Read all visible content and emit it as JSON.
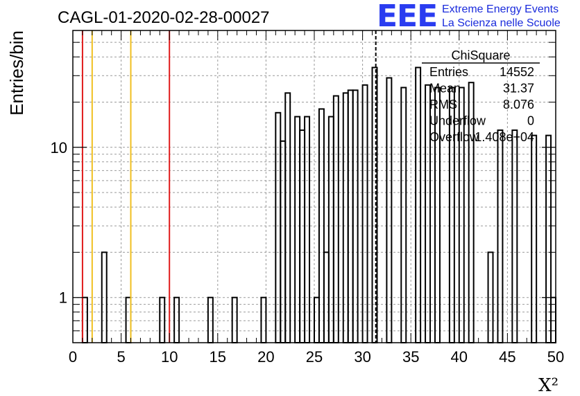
{
  "title": "CAGL-01-2020-02-28-00027",
  "logo": {
    "mark": "EEE",
    "line1": "Extreme Energy Events",
    "line2": "La Scienza nelle Scuole",
    "color": "#1a2bdc"
  },
  "colors": {
    "histogram": "#000000",
    "red_lines": "#e01a1a",
    "yellow_lines": "#f0c020",
    "mean_line": "#000000",
    "grid": "#999999"
  },
  "chart_data": {
    "type": "bar",
    "title": "CAGL-01-2020-02-28-00027",
    "xlabel": "X²",
    "ylabel": "Entries/bin",
    "yscale": "log",
    "xlim": [
      0,
      50
    ],
    "ylim": [
      0.5,
      60
    ],
    "grid": true,
    "bin_width": 0.5,
    "bins": [
      {
        "x": 1.0,
        "y": 1
      },
      {
        "x": 3.0,
        "y": 2
      },
      {
        "x": 5.5,
        "y": 1
      },
      {
        "x": 9.0,
        "y": 1
      },
      {
        "x": 10.5,
        "y": 1
      },
      {
        "x": 14.0,
        "y": 1
      },
      {
        "x": 16.5,
        "y": 1
      },
      {
        "x": 19.5,
        "y": 1
      },
      {
        "x": 21.0,
        "y": 17
      },
      {
        "x": 21.5,
        "y": 11
      },
      {
        "x": 22.0,
        "y": 23
      },
      {
        "x": 23.0,
        "y": 16
      },
      {
        "x": 23.5,
        "y": 13
      },
      {
        "x": 24.0,
        "y": 16
      },
      {
        "x": 25.0,
        "y": 1
      },
      {
        "x": 25.5,
        "y": 18
      },
      {
        "x": 26.0,
        "y": 2
      },
      {
        "x": 26.5,
        "y": 16
      },
      {
        "x": 27.0,
        "y": 22
      },
      {
        "x": 28.0,
        "y": 23
      },
      {
        "x": 28.5,
        "y": 24
      },
      {
        "x": 29.0,
        "y": 24
      },
      {
        "x": 30.0,
        "y": 26
      },
      {
        "x": 31.0,
        "y": 34
      },
      {
        "x": 32.5,
        "y": 29
      },
      {
        "x": 34.0,
        "y": 25
      },
      {
        "x": 35.5,
        "y": 34
      },
      {
        "x": 36.5,
        "y": 26
      },
      {
        "x": 37.5,
        "y": 25
      },
      {
        "x": 39.0,
        "y": 25
      },
      {
        "x": 40.0,
        "y": 25
      },
      {
        "x": 41.0,
        "y": 27
      },
      {
        "x": 43.0,
        "y": 2
      },
      {
        "x": 44.0,
        "y": 13
      },
      {
        "x": 45.5,
        "y": 13
      },
      {
        "x": 47.5,
        "y": 12
      },
      {
        "x": 49.0,
        "y": 12
      },
      {
        "x": 49.5,
        "y": 1
      }
    ],
    "x_ticks": [
      "0",
      "5",
      "10",
      "15",
      "20",
      "25",
      "30",
      "35",
      "40",
      "45",
      "50"
    ],
    "y_ticks": [
      {
        "value": 1,
        "label": "1"
      },
      {
        "value": 10,
        "label": "10"
      }
    ],
    "vertical_lines": [
      {
        "x": 1.0,
        "color": "red"
      },
      {
        "x": 2.0,
        "color": "yellow"
      },
      {
        "x": 6.0,
        "color": "yellow"
      },
      {
        "x": 10.0,
        "color": "red"
      },
      {
        "x": 31.37,
        "color": "black",
        "style": "dashed"
      }
    ]
  },
  "stats_box": {
    "title": "ChiSquare",
    "rows": [
      {
        "label": "Entries",
        "value": "14552"
      },
      {
        "label": "Mean",
        "value": "31.37"
      },
      {
        "label": "RMS",
        "value": "8.076"
      },
      {
        "label": "Underflow",
        "value": "0"
      },
      {
        "label": "Overflow",
        "value": "1.408e+04"
      }
    ]
  }
}
